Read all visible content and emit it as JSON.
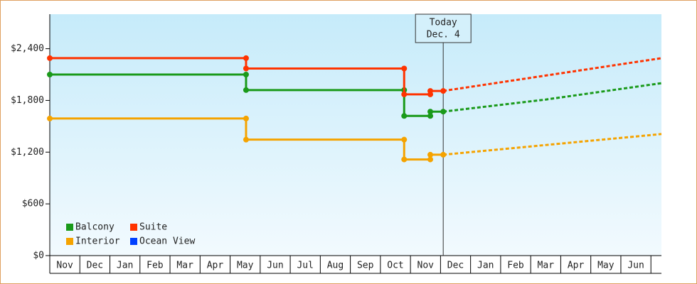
{
  "chart_data": {
    "type": "step",
    "categories": [
      "Nov",
      "Dec",
      "Jan",
      "Feb",
      "Mar",
      "Apr",
      "May",
      "Jun",
      "Jul",
      "Aug",
      "Sep",
      "Oct",
      "Nov",
      "Dec",
      "Jan",
      "Feb",
      "Mar",
      "Apr",
      "May",
      "Jun"
    ],
    "xlim": [
      0,
      20.35
    ],
    "ylim": [
      0,
      2800
    ],
    "yticks": [
      {
        "value": 0,
        "label": "$0"
      },
      {
        "value": 600,
        "label": "$600"
      },
      {
        "value": 1200,
        "label": "$1,200"
      },
      {
        "value": 1800,
        "label": "$1,800"
      },
      {
        "value": 2400,
        "label": "$2,400"
      }
    ],
    "today": {
      "x": 13.09,
      "label": [
        "Today",
        "Dec. 4"
      ]
    },
    "series": [
      {
        "name": "Balcony",
        "color": "#1a9a1a",
        "x": [
          0,
          6.53,
          6.53,
          11.79,
          11.79,
          12.66,
          12.66,
          13.09
        ],
        "values": [
          2100,
          2100,
          1920,
          1920,
          1620,
          1620,
          1670,
          1670
        ],
        "projected_x": [
          13.09,
          16.5,
          20.35
        ],
        "projected_values": [
          1670,
          1810,
          2000
        ]
      },
      {
        "name": "Suite",
        "color": "#ff3300",
        "x": [
          0,
          6.53,
          6.53,
          11.79,
          11.79,
          12.66,
          12.66,
          13.09
        ],
        "values": [
          2290,
          2290,
          2170,
          2170,
          1870,
          1870,
          1910,
          1910
        ],
        "projected_x": [
          13.09,
          20.35
        ],
        "projected_values": [
          1910,
          2290
        ]
      },
      {
        "name": "Interior",
        "color": "#f5a300",
        "x": [
          0,
          6.53,
          6.53,
          11.79,
          11.79,
          12.66,
          12.66,
          13.09
        ],
        "values": [
          1590,
          1590,
          1345,
          1345,
          1115,
          1115,
          1170,
          1170
        ],
        "projected_x": [
          13.09,
          20.35
        ],
        "projected_values": [
          1170,
          1410
        ]
      },
      {
        "name": "Ocean View",
        "color": "#0040ff",
        "x": [],
        "values": [],
        "projected_x": [],
        "projected_values": []
      }
    ]
  }
}
